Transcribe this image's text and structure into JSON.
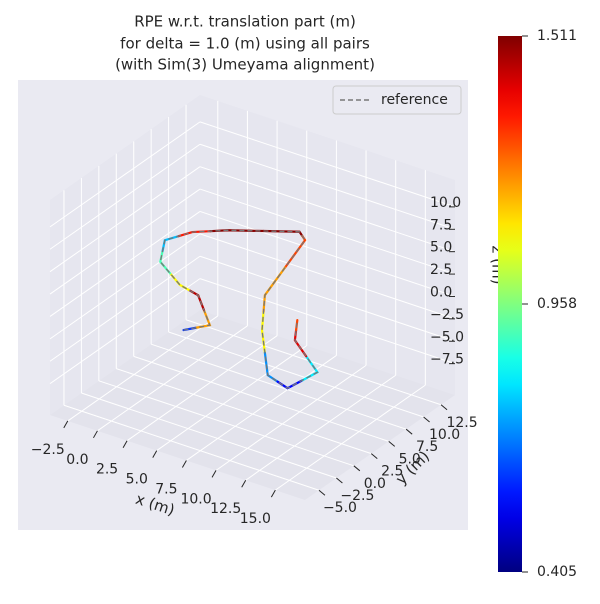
{
  "chart_data": {
    "type": "line3d",
    "title": [
      "RPE w.r.t. translation part (m)",
      "for delta = 1.0 (m) using all pairs",
      "(with Sim(3) Umeyama alignment)"
    ],
    "xlabel": "x (m)",
    "ylabel": "y (m)",
    "zlabel": "z (m)",
    "xlim": [
      -4,
      17.5
    ],
    "ylim": [
      -7,
      14.5
    ],
    "zlim": [
      -11,
      13
    ],
    "xticks": [
      {
        "value": -2.5,
        "label": "−2.5"
      },
      {
        "value": 0,
        "label": "0.0"
      },
      2.5,
      {
        "value": 5,
        "label": "5.0"
      },
      7.5,
      {
        "value": 10,
        "label": "10.0"
      },
      12.5,
      {
        "value": 15,
        "label": "15.0"
      }
    ],
    "yticks": [
      {
        "value": -5,
        "label": "−5.0"
      },
      {
        "value": -2.5,
        "label": "−2.5"
      },
      {
        "value": 0,
        "label": "0.0"
      },
      2.5,
      {
        "value": 5,
        "label": "5.0"
      },
      7.5,
      {
        "value": 10,
        "label": "10.0"
      },
      12.5
    ],
    "zticks": [
      {
        "value": -7.5,
        "label": "−7.5"
      },
      {
        "value": -5,
        "label": "−5.0"
      },
      {
        "value": -2.5,
        "label": "−2.5"
      },
      {
        "value": 0,
        "label": "0.0"
      },
      2.5,
      {
        "value": 5,
        "label": "5.0"
      },
      7.5,
      {
        "value": 10,
        "label": "10.0"
      }
    ],
    "grid": true,
    "legend": "upper right",
    "series": [
      {
        "name": "reference",
        "color": "#777777",
        "x": [
          6.2,
          7.3,
          4.2,
          2.3,
          -0.7,
          -2.2,
          -1.3,
          0.6,
          4.8,
          5.8,
          8.0,
          10.7,
          10.3,
          12.5,
          12.9,
          9.0,
          7.5
        ],
        "y": [
          -5.2,
          -3.3,
          0.3,
          0.9,
          3.2,
          6.4,
          8.8,
          10.7,
          13.8,
          12.9,
          3.4,
          -1.6,
          -0.1,
          -1.0,
          2.6,
          6.0,
          8.9
        ],
        "z": [
          2,
          2,
          2,
          2,
          2,
          2,
          2,
          2,
          2,
          2,
          2,
          2,
          -4,
          -4,
          -4,
          -4,
          -4
        ]
      }
    ],
    "errors": [
      0.6,
      1.2,
      1.45,
      1.1,
      0.9,
      0.75,
      1.35,
      1.5,
      1.5,
      1.3,
      1.2,
      1.1,
      0.7,
      0.55,
      0.8,
      1.4,
      1.3
    ],
    "colormap": "jet",
    "colorbar": {
      "lim": [
        0.405,
        1.511
      ],
      "ticks": [
        0.405,
        0.958,
        1.511
      ]
    }
  }
}
